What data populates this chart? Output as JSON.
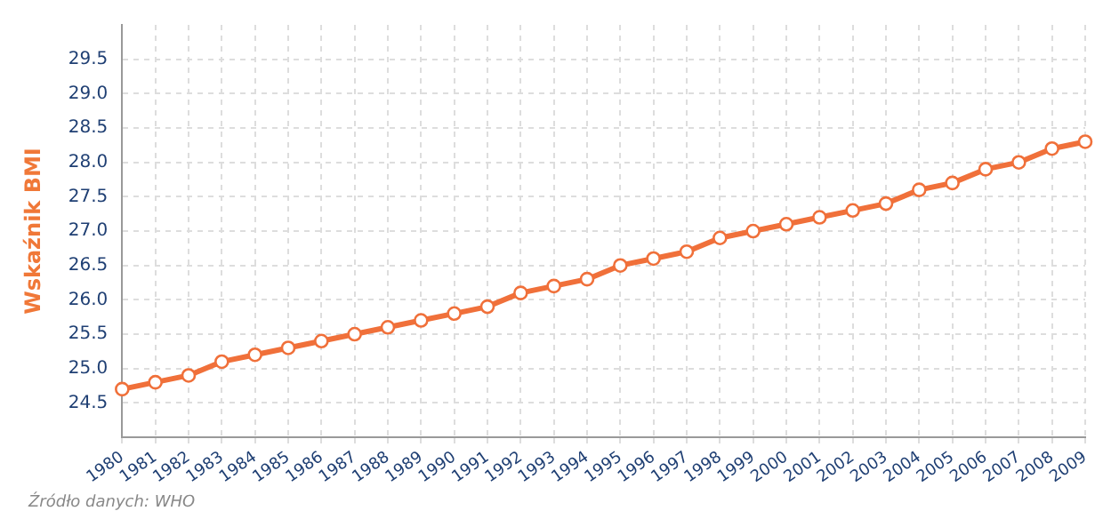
{
  "chart_data": {
    "type": "line",
    "ylabel": "Wskaźnik BMI",
    "categories": [
      "1980",
      "1981",
      "1982",
      "1983",
      "1984",
      "1985",
      "1986",
      "1987",
      "1988",
      "1989",
      "1990",
      "1991",
      "1992",
      "1993",
      "1994",
      "1995",
      "1996",
      "1997",
      "1998",
      "1999",
      "2000",
      "2001",
      "2002",
      "2003",
      "2004",
      "2005",
      "2006",
      "2007",
      "2008",
      "2009"
    ],
    "series": [
      {
        "color": "#f0703a",
        "values": [
          24.7,
          24.8,
          24.9,
          25.1,
          25.2,
          25.3,
          25.4,
          25.5,
          25.6,
          25.7,
          25.8,
          25.9,
          26.1,
          26.2,
          26.3,
          26.5,
          26.6,
          26.7,
          26.9,
          27.0,
          27.1,
          27.2,
          27.3,
          27.4,
          27.6,
          27.7,
          27.9,
          28.0,
          28.2,
          28.3
        ]
      }
    ],
    "ylim": [
      24,
      30
    ],
    "yticks": [
      {
        "value": 24.5,
        "label": "24.5"
      },
      {
        "value": 25,
        "label": "25.0"
      },
      {
        "value": 25.5,
        "label": "25.5"
      },
      {
        "value": 26,
        "label": "26.0"
      },
      {
        "value": 26.5,
        "label": "26.5"
      },
      {
        "value": 27,
        "label": "27.0"
      },
      {
        "value": 27.5,
        "label": "27.5"
      },
      {
        "value": 28,
        "label": "28.0"
      },
      {
        "value": 28.5,
        "label": "28.5"
      },
      {
        "value": 29,
        "label": "29.0"
      },
      {
        "value": 29.5,
        "label": "29.5"
      }
    ],
    "grid": true,
    "legend": false,
    "marker": "circle",
    "line_style": "solid",
    "annotations": [
      "Źródło danych:  WHO"
    ]
  }
}
